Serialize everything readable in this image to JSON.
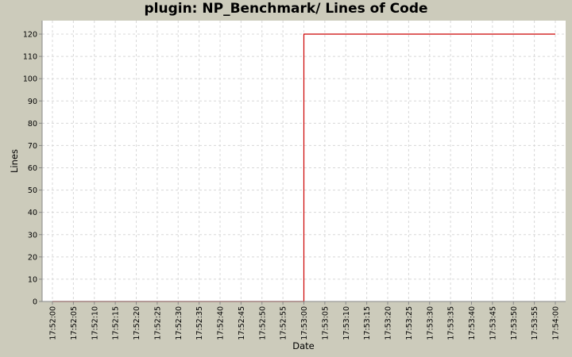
{
  "chart_data": {
    "type": "line",
    "title": "plugin: NP_Benchmark/ Lines of Code",
    "xlabel": "Date",
    "ylabel": "Lines",
    "ylim": [
      0,
      125
    ],
    "grid": true,
    "legend": null,
    "y_ticks": [
      0,
      10,
      20,
      30,
      40,
      50,
      60,
      70,
      80,
      90,
      100,
      110,
      120
    ],
    "x_ticks": [
      "17:52:00",
      "17:52:05",
      "17:52:10",
      "17:52:15",
      "17:52:20",
      "17:52:25",
      "17:52:30",
      "17:52:35",
      "17:52:40",
      "17:52:45",
      "17:52:50",
      "17:52:55",
      "17:53:00",
      "17:53:05",
      "17:53:10",
      "17:53:15",
      "17:53:20",
      "17:53:25",
      "17:53:30",
      "17:53:35",
      "17:53:40",
      "17:53:45",
      "17:53:50",
      "17:53:55",
      "17:54:00"
    ],
    "series": [
      {
        "name": "Lines of Code",
        "color": "#cc0000",
        "step": true,
        "points": [
          {
            "x": "17:52:00",
            "y": 0
          },
          {
            "x": "17:53:00",
            "y": 0
          },
          {
            "x": "17:53:00",
            "y": 120
          },
          {
            "x": "17:54:00",
            "y": 120
          }
        ]
      }
    ]
  },
  "colors": {
    "background": "#cccbbb",
    "plot_background": "#ffffff",
    "grid": "#d8d8d8",
    "axis": "#888888",
    "series": "#cc0000"
  }
}
